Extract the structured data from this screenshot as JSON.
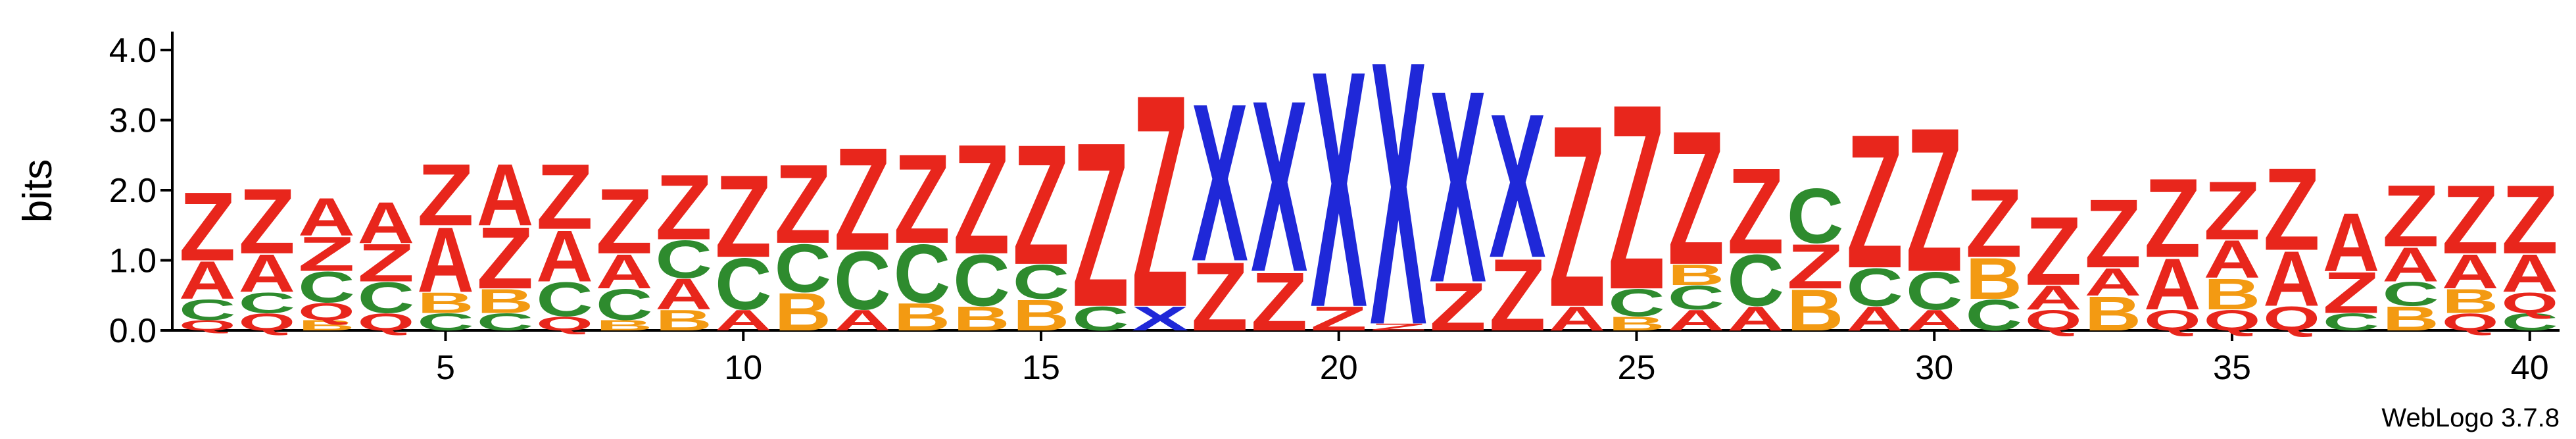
{
  "chart_data": {
    "type": "sequence-logo",
    "ylabel": "bits",
    "ylim": [
      0,
      4.0
    ],
    "yticks": [
      "0.0",
      "1.0",
      "2.0",
      "3.0",
      "4.0"
    ],
    "xticks": [
      5,
      10,
      15,
      20,
      25,
      30,
      35,
      40
    ],
    "credit": "WebLogo 3.7.8",
    "colors": {
      "Z": "#e8261c",
      "A": "#e8261c",
      "X": "#1f28d8",
      "C": "#2e8b2e",
      "B": "#f39a12",
      "Q": "#e8261c"
    },
    "positions": [
      {
        "pos": 1,
        "stack": [
          [
            "Q",
            0.15
          ],
          [
            "C",
            0.3
          ],
          [
            "A",
            0.55
          ],
          [
            "Z",
            1.0
          ]
        ]
      },
      {
        "pos": 2,
        "stack": [
          [
            "Q",
            0.25
          ],
          [
            "C",
            0.3
          ],
          [
            "A",
            0.55
          ],
          [
            "Z",
            0.95
          ]
        ]
      },
      {
        "pos": 3,
        "stack": [
          [
            "B",
            0.15
          ],
          [
            "Q",
            0.25
          ],
          [
            "C",
            0.45
          ],
          [
            "Z",
            0.5
          ],
          [
            "A",
            0.55
          ]
        ]
      },
      {
        "pos": 4,
        "stack": [
          [
            "Q",
            0.25
          ],
          [
            "C",
            0.45
          ],
          [
            "Z",
            0.55
          ],
          [
            "A",
            0.6
          ]
        ]
      },
      {
        "pos": 5,
        "stack": [
          [
            "C",
            0.25
          ],
          [
            "B",
            0.3
          ],
          [
            "A",
            0.95
          ],
          [
            "Z",
            0.9
          ]
        ]
      },
      {
        "pos": 6,
        "stack": [
          [
            "C",
            0.25
          ],
          [
            "B",
            0.35
          ],
          [
            "Z",
            0.9
          ],
          [
            "A",
            0.9
          ]
        ]
      },
      {
        "pos": 7,
        "stack": [
          [
            "Q",
            0.2
          ],
          [
            "C",
            0.5
          ],
          [
            "A",
            0.75
          ],
          [
            "Z",
            0.95
          ]
        ]
      },
      {
        "pos": 8,
        "stack": [
          [
            "B",
            0.15
          ],
          [
            "C",
            0.45
          ],
          [
            "A",
            0.5
          ],
          [
            "Z",
            0.95
          ]
        ]
      },
      {
        "pos": 9,
        "stack": [
          [
            "B",
            0.3
          ],
          [
            "A",
            0.45
          ],
          [
            "C",
            0.55
          ],
          [
            "Z",
            0.95
          ]
        ]
      },
      {
        "pos": 10,
        "stack": [
          [
            "A",
            0.3
          ],
          [
            "C",
            0.75
          ],
          [
            "Z",
            1.2
          ]
        ]
      },
      {
        "pos": 11,
        "stack": [
          [
            "B",
            0.55
          ],
          [
            "C",
            0.7
          ],
          [
            "Z",
            1.15
          ]
        ]
      },
      {
        "pos": 12,
        "stack": [
          [
            "A",
            0.3
          ],
          [
            "C",
            0.85
          ],
          [
            "Z",
            1.5
          ]
        ]
      },
      {
        "pos": 13,
        "stack": [
          [
            "B",
            0.4
          ],
          [
            "C",
            0.85
          ],
          [
            "Z",
            1.3
          ]
        ]
      },
      {
        "pos": 14,
        "stack": [
          [
            "B",
            0.35
          ],
          [
            "C",
            0.75
          ],
          [
            "Z",
            1.6
          ]
        ]
      },
      {
        "pos": 15,
        "stack": [
          [
            "B",
            0.45
          ],
          [
            "C",
            0.5
          ],
          [
            "Z",
            1.75
          ]
        ]
      },
      {
        "pos": 16,
        "stack": [
          [
            "C",
            0.35
          ],
          [
            "Z",
            2.4
          ]
        ]
      },
      {
        "pos": 17,
        "stack": [
          [
            "X",
            0.35
          ],
          [
            "Z",
            3.1
          ]
        ]
      },
      {
        "pos": 18,
        "stack": [
          [
            "Z",
            1.0
          ],
          [
            "X",
            2.3
          ]
        ]
      },
      {
        "pos": 19,
        "stack": [
          [
            "Z",
            0.85
          ],
          [
            "X",
            2.5
          ]
        ]
      },
      {
        "pos": 20,
        "stack": [
          [
            "Z",
            0.35
          ],
          [
            "X",
            3.45
          ]
        ]
      },
      {
        "pos": 21,
        "stack": [
          [
            "Z",
            0.1
          ],
          [
            "X",
            3.85
          ]
        ]
      },
      {
        "pos": 22,
        "stack": [
          [
            "Z",
            0.7
          ],
          [
            "X",
            2.8
          ]
        ]
      },
      {
        "pos": 23,
        "stack": [
          [
            "Z",
            1.05
          ],
          [
            "X",
            2.1
          ]
        ]
      },
      {
        "pos": 24,
        "stack": [
          [
            "A",
            0.35
          ],
          [
            "Z",
            2.65
          ]
        ]
      },
      {
        "pos": 25,
        "stack": [
          [
            "B",
            0.2
          ],
          [
            "C",
            0.4
          ],
          [
            "Z",
            2.7
          ]
        ]
      },
      {
        "pos": 26,
        "stack": [
          [
            "A",
            0.3
          ],
          [
            "C",
            0.35
          ],
          [
            "B",
            0.3
          ],
          [
            "Z",
            1.95
          ]
        ]
      },
      {
        "pos": 27,
        "stack": [
          [
            "A",
            0.35
          ],
          [
            "C",
            0.75
          ],
          [
            "Z",
            1.25
          ]
        ]
      },
      {
        "pos": 28,
        "stack": [
          [
            "B",
            0.6
          ],
          [
            "Z",
            0.65
          ],
          [
            "C",
            0.8
          ]
        ]
      },
      {
        "pos": 29,
        "stack": [
          [
            "A",
            0.35
          ],
          [
            "C",
            0.55
          ],
          [
            "Z",
            1.95
          ]
        ]
      },
      {
        "pos": 30,
        "stack": [
          [
            "A",
            0.3
          ],
          [
            "C",
            0.55
          ],
          [
            "Z",
            2.1
          ]
        ]
      },
      {
        "pos": 31,
        "stack": [
          [
            "C",
            0.45
          ],
          [
            "B",
            0.6
          ],
          [
            "Z",
            1.0
          ]
        ]
      },
      {
        "pos": 32,
        "stack": [
          [
            "Q",
            0.3
          ],
          [
            "A",
            0.35
          ],
          [
            "Z",
            1.0
          ]
        ]
      },
      {
        "pos": 33,
        "stack": [
          [
            "B",
            0.5
          ],
          [
            "A",
            0.4
          ],
          [
            "Z",
            1.0
          ]
        ]
      },
      {
        "pos": 34,
        "stack": [
          [
            "Q",
            0.3
          ],
          [
            "A",
            0.75
          ],
          [
            "Z",
            1.15
          ]
        ]
      },
      {
        "pos": 35,
        "stack": [
          [
            "Q",
            0.3
          ],
          [
            "B",
            0.45
          ],
          [
            "A",
            0.55
          ],
          [
            "Z",
            0.85
          ]
        ]
      },
      {
        "pos": 36,
        "stack": [
          [
            "Q",
            0.35
          ],
          [
            "A",
            0.8
          ],
          [
            "Z",
            1.2
          ]
        ]
      },
      {
        "pos": 37,
        "stack": [
          [
            "C",
            0.25
          ],
          [
            "Z",
            0.6
          ],
          [
            "A",
            0.85
          ]
        ]
      },
      {
        "pos": 38,
        "stack": [
          [
            "B",
            0.35
          ],
          [
            "C",
            0.35
          ],
          [
            "A",
            0.5
          ],
          [
            "Z",
            0.9
          ]
        ]
      },
      {
        "pos": 39,
        "stack": [
          [
            "Q",
            0.25
          ],
          [
            "B",
            0.35
          ],
          [
            "A",
            0.5
          ],
          [
            "Z",
            1.0
          ]
        ]
      },
      {
        "pos": 40,
        "stack": [
          [
            "C",
            0.25
          ],
          [
            "Q",
            0.3
          ],
          [
            "A",
            0.55
          ],
          [
            "Z",
            1.0
          ]
        ]
      }
    ]
  }
}
